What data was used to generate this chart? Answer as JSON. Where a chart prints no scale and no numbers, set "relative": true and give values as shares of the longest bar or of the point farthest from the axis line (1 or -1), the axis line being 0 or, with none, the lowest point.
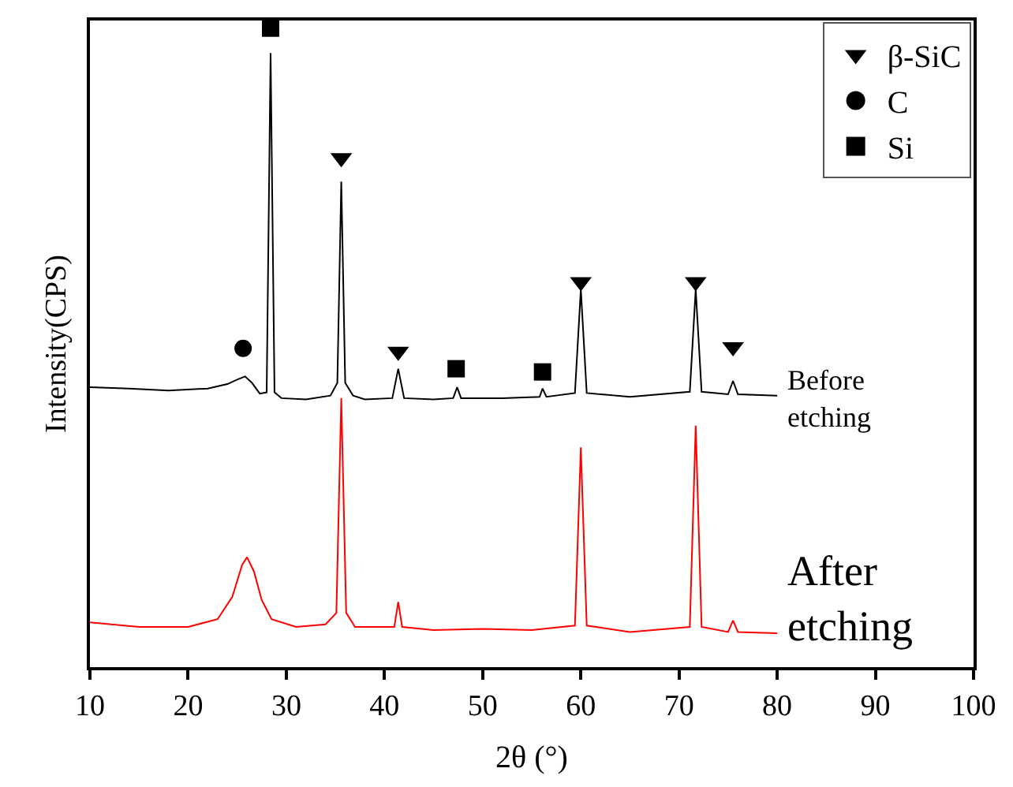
{
  "chart_data": {
    "type": "line",
    "relative": true,
    "xlabel": "2θ (°)",
    "ylabel": "Intensity(CPS)",
    "xlim": [
      10,
      100
    ],
    "xticks": [
      10,
      20,
      30,
      40,
      50,
      60,
      70,
      80,
      90,
      100
    ],
    "legend": "top right",
    "series": [
      {
        "name": "Before etching",
        "color": "#000000",
        "marker": "none",
        "x": [
          10,
          14,
          18,
          22,
          24,
          25,
          25.8,
          26.5,
          27.3,
          28.0,
          28.4,
          28.8,
          29.5,
          32,
          34.5,
          35.2,
          35.6,
          36.0,
          36.8,
          38,
          40.8,
          41.4,
          42,
          45,
          47,
          47.4,
          47.8,
          52,
          55.8,
          56.1,
          56.5,
          59.4,
          60,
          60.6,
          65,
          71.1,
          71.7,
          72.3,
          75,
          75.5,
          76,
          80
        ],
        "values": [
          0.438,
          0.436,
          0.433,
          0.436,
          0.443,
          0.45,
          0.455,
          0.445,
          0.428,
          0.43,
          0.961,
          0.43,
          0.421,
          0.419,
          0.425,
          0.445,
          0.76,
          0.445,
          0.425,
          0.419,
          0.421,
          0.467,
          0.421,
          0.419,
          0.421,
          0.438,
          0.421,
          0.421,
          0.423,
          0.436,
          0.423,
          0.429,
          0.591,
          0.429,
          0.423,
          0.431,
          0.591,
          0.431,
          0.427,
          0.448,
          0.427,
          0.425
        ]
      },
      {
        "name": "After etching",
        "color": "#ff0000",
        "marker": "none",
        "x": [
          10,
          15,
          20,
          23,
          24.5,
          25.5,
          26,
          26.7,
          27.5,
          28.5,
          31,
          34,
          35.1,
          35.6,
          36.1,
          37,
          41,
          41.4,
          41.8,
          45,
          50,
          55,
          59.4,
          60,
          60.6,
          65,
          71.1,
          71.7,
          72.3,
          75,
          75.5,
          76,
          80
        ],
        "values": [
          0.07,
          0.063,
          0.063,
          0.075,
          0.11,
          0.16,
          0.172,
          0.15,
          0.105,
          0.075,
          0.063,
          0.067,
          0.085,
          0.421,
          0.085,
          0.063,
          0.063,
          0.102,
          0.063,
          0.058,
          0.06,
          0.058,
          0.065,
          0.344,
          0.065,
          0.055,
          0.063,
          0.378,
          0.063,
          0.055,
          0.073,
          0.055,
          0.053
        ]
      },
      {
        "type": "scatter",
        "name": "β-SiC",
        "color": "#000000",
        "marker": "triangle",
        "x": [
          35.6,
          41.4,
          60,
          71.7,
          75.5
        ],
        "values": [
          0.797,
          0.494,
          0.603,
          0.603,
          0.501
        ]
      },
      {
        "type": "scatter",
        "name": "C",
        "color": "#000000",
        "marker": "circle",
        "x": [
          25.6
        ],
        "values": [
          0.499
        ]
      },
      {
        "type": "scatter",
        "name": "Si",
        "color": "#000000",
        "marker": "square",
        "x": [
          28.4,
          47.3,
          56.1
        ],
        "values": [
          1.0,
          0.467,
          0.462
        ]
      }
    ]
  }
}
